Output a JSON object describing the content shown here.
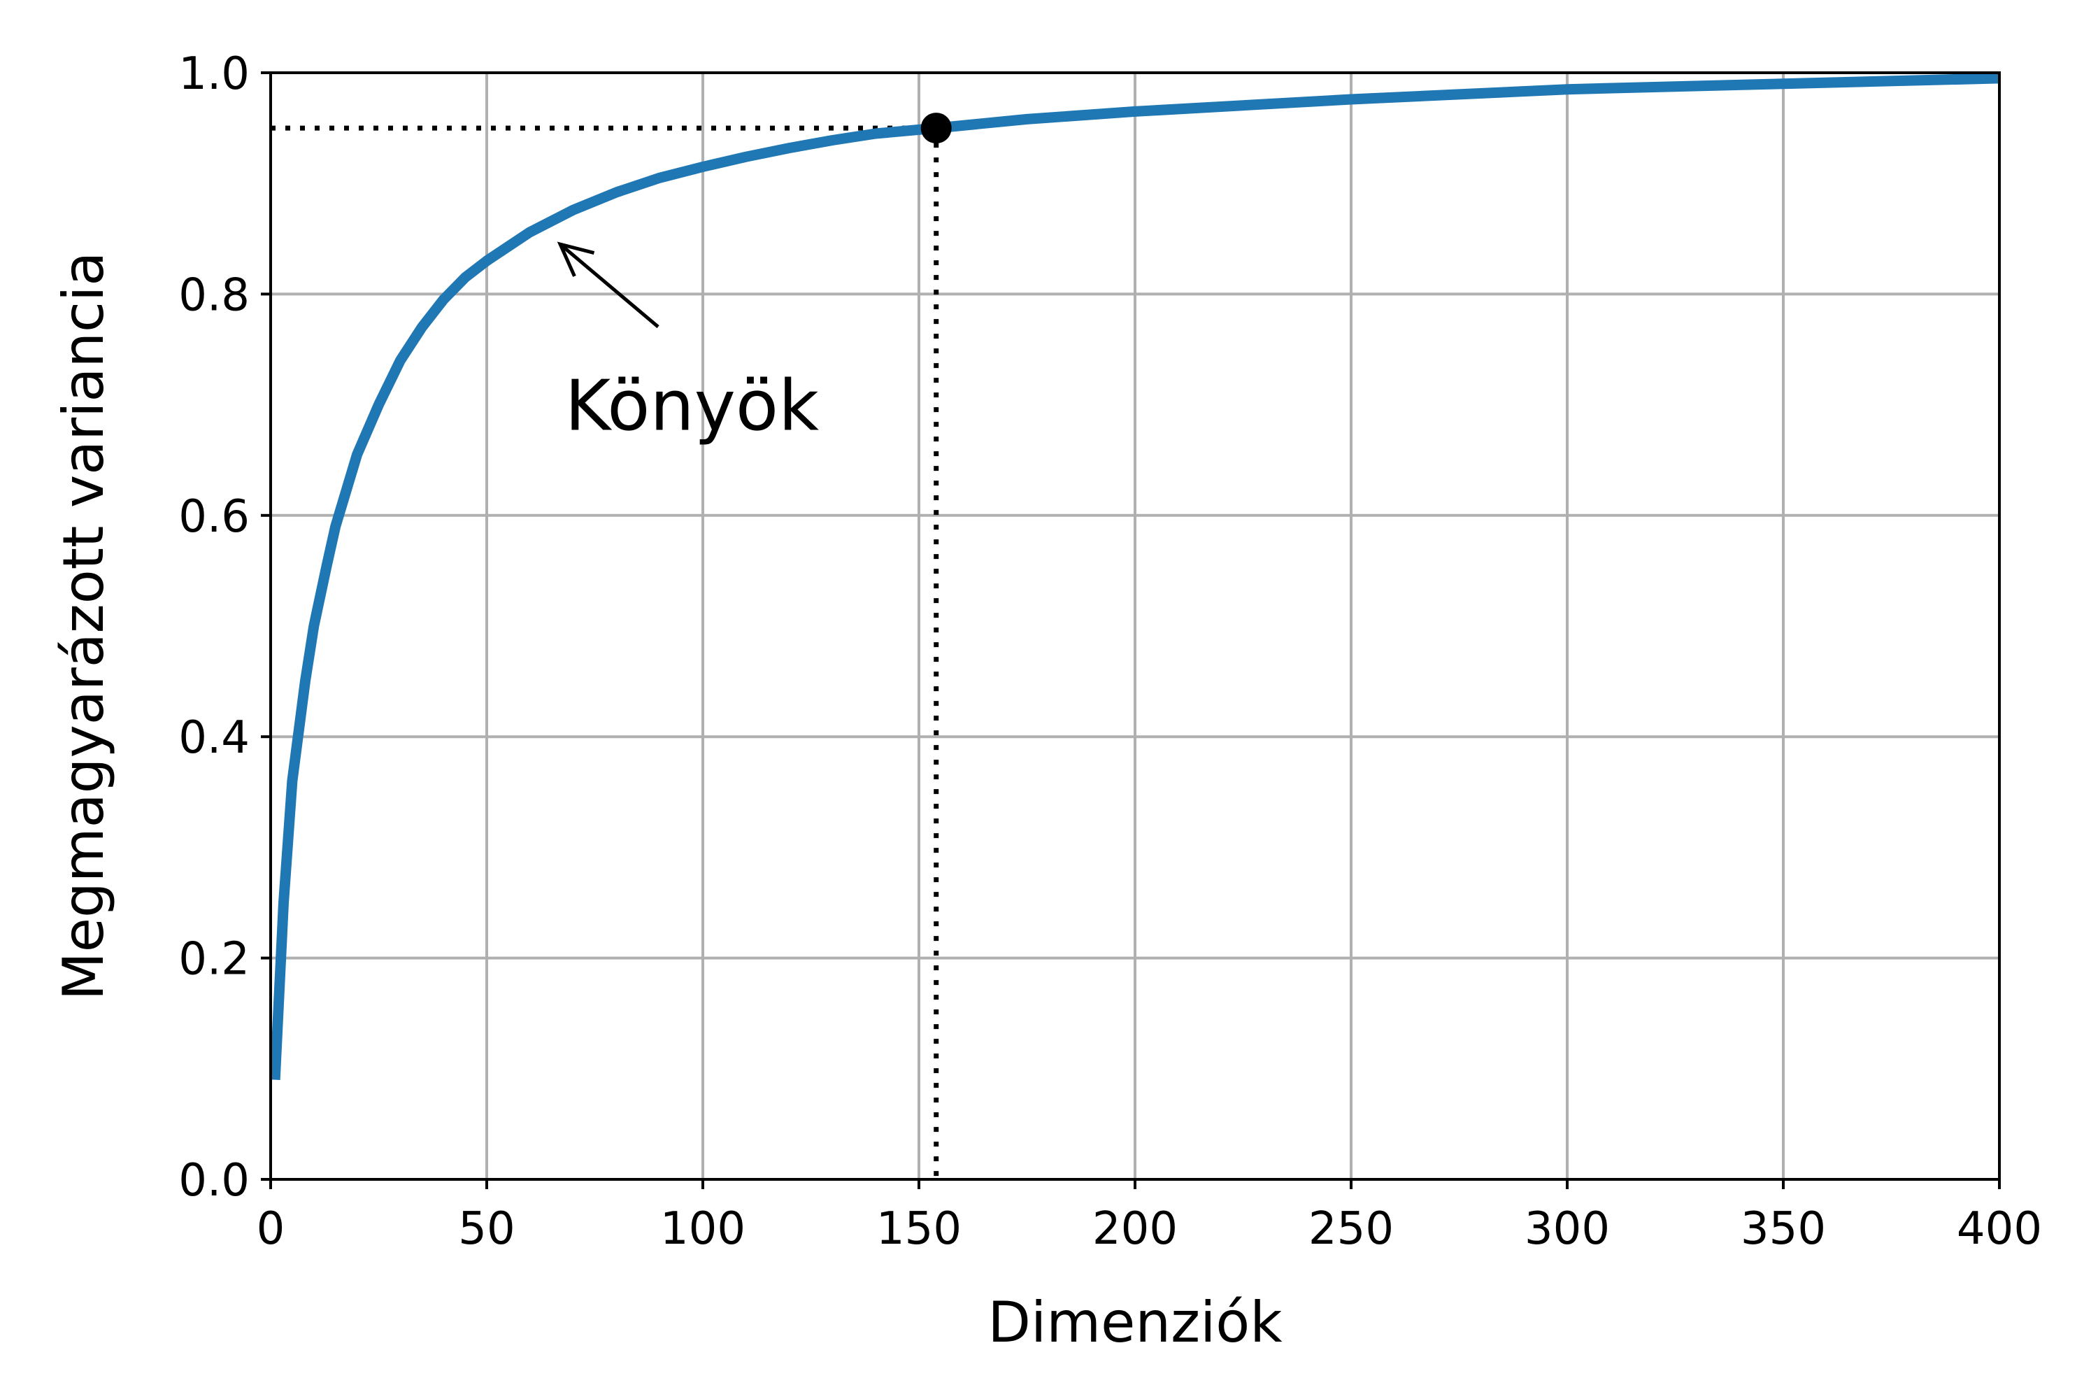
{
  "chart_data": {
    "type": "line",
    "title": "",
    "xlabel": "Dimenziók",
    "ylabel": "Megmagyarázott variancia",
    "xlim": [
      0,
      400
    ],
    "ylim": [
      0,
      1.0
    ],
    "xticks": [
      0,
      50,
      100,
      150,
      200,
      250,
      300,
      350,
      400
    ],
    "yticks": [
      0.0,
      0.2,
      0.4,
      0.6,
      0.8,
      1.0
    ],
    "xtick_labels": [
      "0",
      "50",
      "100",
      "150",
      "200",
      "250",
      "300",
      "350",
      "400"
    ],
    "ytick_labels": [
      "0.0",
      "0.2",
      "0.4",
      "0.6",
      "0.8",
      "1.0"
    ],
    "grid": true,
    "series": [
      {
        "color": "#1f77b4",
        "x": [
          1,
          3,
          5,
          8,
          10,
          13,
          15,
          20,
          25,
          30,
          35,
          40,
          45,
          50,
          60,
          70,
          80,
          90,
          100,
          110,
          120,
          130,
          140,
          154,
          175,
          200,
          250,
          300,
          350,
          400
        ],
        "y": [
          0.09,
          0.25,
          0.36,
          0.45,
          0.5,
          0.555,
          0.59,
          0.655,
          0.7,
          0.74,
          0.77,
          0.795,
          0.815,
          0.83,
          0.856,
          0.876,
          0.892,
          0.905,
          0.915,
          0.924,
          0.932,
          0.939,
          0.945,
          0.95,
          0.958,
          0.965,
          0.976,
          0.985,
          0.99,
          0.995
        ]
      }
    ],
    "marker_point": {
      "x": 154,
      "y": 0.95,
      "color": "#000000"
    },
    "reference_lines": {
      "x": 154,
      "y": 0.95,
      "style": "dotted",
      "color": "#000000"
    },
    "annotation": {
      "text": "Könyök",
      "arrow_target": {
        "x": 67,
        "y": 0.845
      },
      "text_anchor": {
        "x": 70,
        "y": 0.7
      }
    },
    "grid_color": "#b0b0b0"
  }
}
